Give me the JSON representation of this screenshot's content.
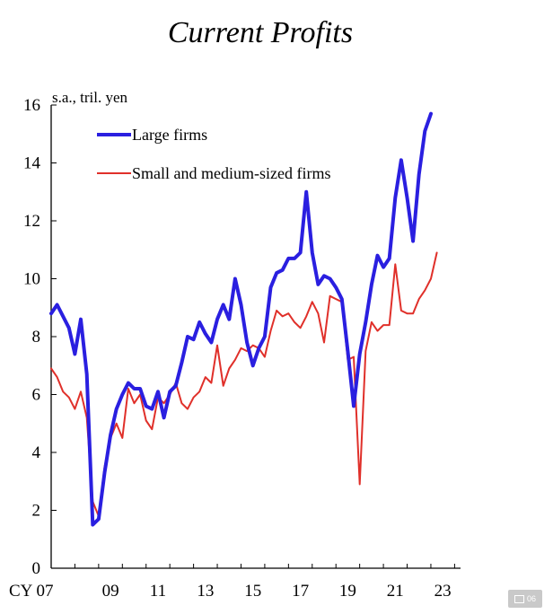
{
  "chart_data": {
    "type": "line",
    "title": "Current Profits",
    "unit_label": "s.a., tril. yen",
    "xlabel": "",
    "ylabel": "",
    "ylim": [
      0,
      16
    ],
    "yticks": [
      0,
      2,
      4,
      6,
      8,
      10,
      12,
      14,
      16
    ],
    "xlim": [
      2007,
      2024.25
    ],
    "xticks": [
      {
        "value": 2007,
        "label": "CY 07"
      },
      {
        "value": 2009,
        "label": "09"
      },
      {
        "value": 2011,
        "label": "11"
      },
      {
        "value": 2013,
        "label": "13"
      },
      {
        "value": 2015,
        "label": "15"
      },
      {
        "value": 2017,
        "label": "17"
      },
      {
        "value": 2019,
        "label": "19"
      },
      {
        "value": 2021,
        "label": "21"
      },
      {
        "value": 2023,
        "label": "23"
      }
    ],
    "x_start": 2007.0,
    "x_step": 0.25,
    "series": [
      {
        "name": "Large firms",
        "color": "#2a1fe0",
        "values": [
          8.8,
          9.1,
          8.7,
          8.3,
          7.4,
          8.6,
          6.7,
          1.5,
          1.7,
          3.3,
          4.6,
          5.5,
          6.0,
          6.4,
          6.2,
          6.2,
          5.6,
          5.5,
          6.1,
          5.2,
          6.1,
          6.3,
          7.1,
          8.0,
          7.9,
          8.5,
          8.1,
          7.8,
          8.6,
          9.1,
          8.6,
          10.0,
          9.1,
          7.8,
          7.0,
          7.6,
          8.0,
          9.7,
          10.2,
          10.3,
          10.7,
          10.7,
          10.9,
          13.0,
          10.9,
          9.8,
          10.1,
          10.0,
          9.7,
          9.3,
          7.5,
          5.6,
          7.4,
          8.5,
          9.8,
          10.8,
          10.4,
          10.7,
          12.8,
          14.1,
          12.8,
          11.3,
          13.6,
          15.1,
          15.7
        ]
      },
      {
        "name": "Small and medium-sized firms",
        "color": "#e0302a",
        "values": [
          6.9,
          6.6,
          6.1,
          5.9,
          5.5,
          6.1,
          5.2,
          2.3,
          1.8,
          3.5,
          4.5,
          5.0,
          4.5,
          6.2,
          5.7,
          6.0,
          5.1,
          4.8,
          5.9,
          5.7,
          6.0,
          6.4,
          5.7,
          5.5,
          5.9,
          6.1,
          6.6,
          6.4,
          7.7,
          6.3,
          6.9,
          7.2,
          7.6,
          7.5,
          7.7,
          7.6,
          7.3,
          8.2,
          8.9,
          8.7,
          8.8,
          8.5,
          8.3,
          8.7,
          9.2,
          8.8,
          7.8,
          9.4,
          9.3,
          9.2,
          7.2,
          7.3,
          2.9,
          7.5,
          8.5,
          8.2,
          8.4,
          8.4,
          10.5,
          8.9,
          8.8,
          8.8,
          9.3,
          9.6,
          10.0,
          10.9
        ]
      }
    ],
    "legend": [
      {
        "label": "Large firms",
        "color": "#2a1fe0"
      },
      {
        "label": "Small and medium-sized firms",
        "color": "#e0302a"
      }
    ]
  },
  "badge": {
    "text": "06",
    "icon": "image-icon"
  }
}
